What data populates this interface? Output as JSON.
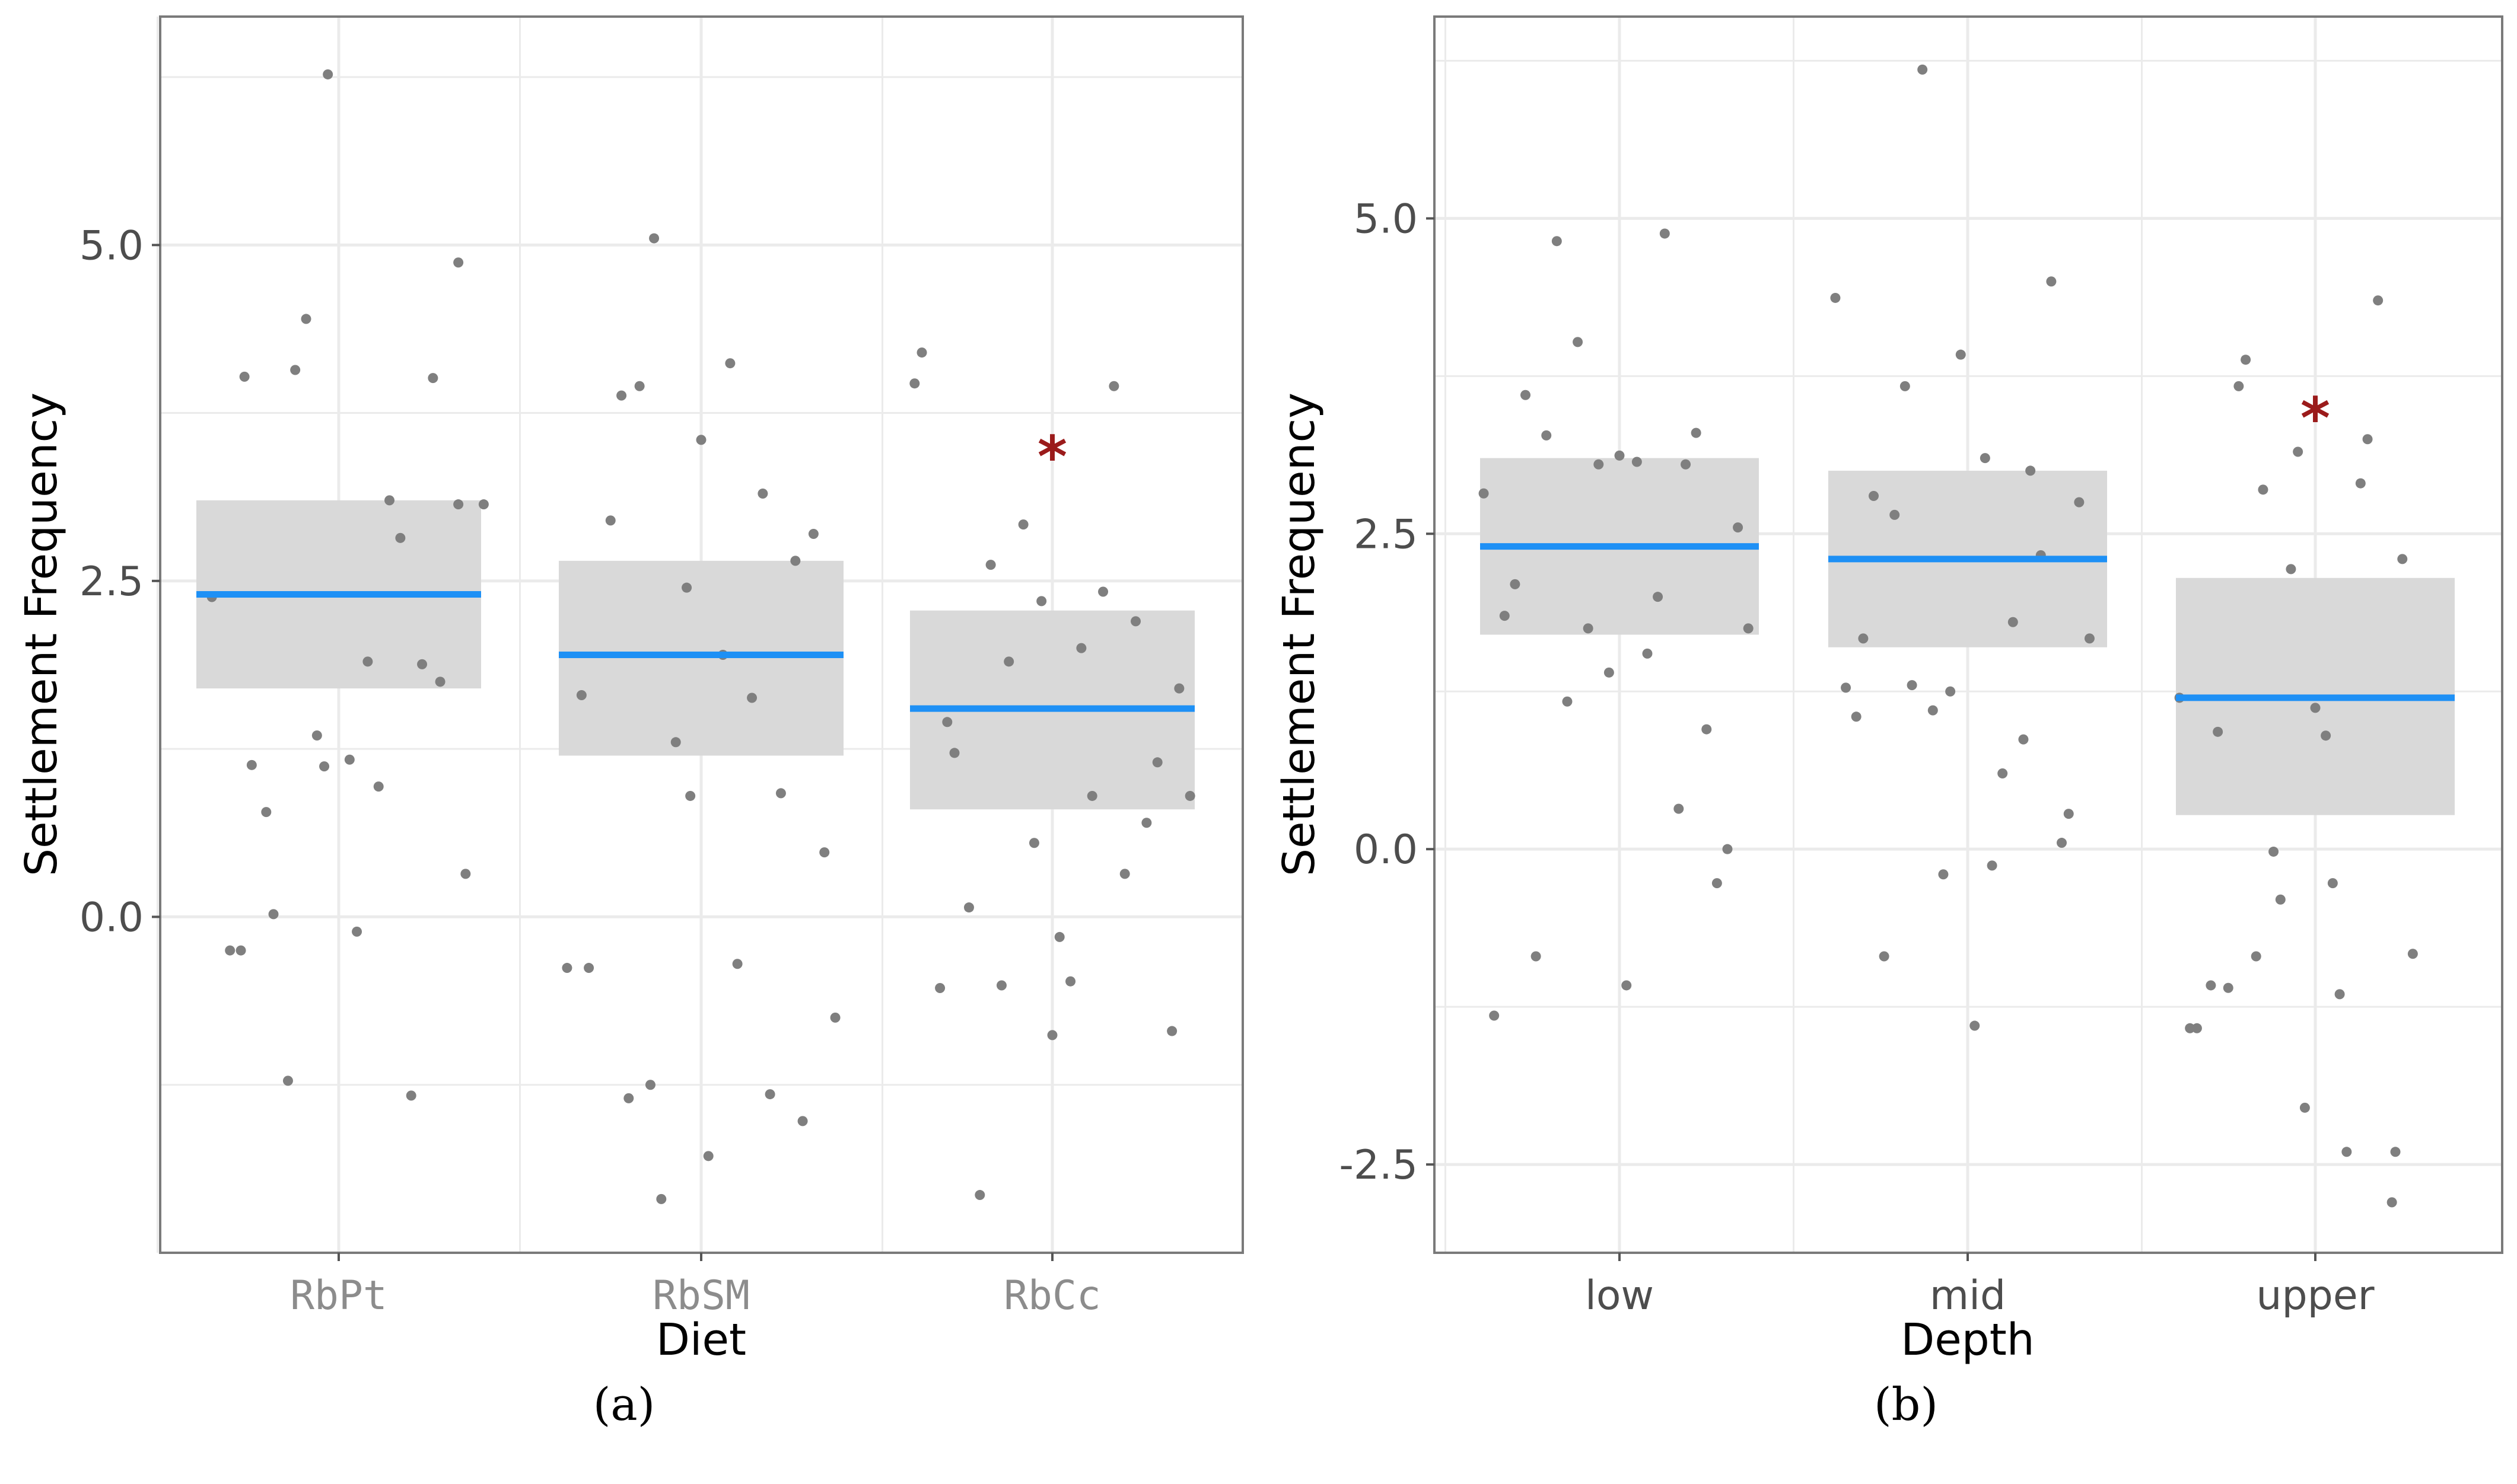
{
  "chart_data": [
    {
      "type": "scatter",
      "panel": "a",
      "title": "",
      "xlabel": "Diet",
      "ylabel": "Settlement Frequency",
      "categories": [
        "RbPt",
        "RbSM",
        "RbCc"
      ],
      "ylim": [
        -2.5,
        6.7
      ],
      "yticks": [
        0.0,
        2.5,
        5.0
      ],
      "ytick_labels": [
        "0.0",
        "2.5",
        "5.0"
      ],
      "grid": true,
      "groups": [
        {
          "category": "RbPt",
          "mean": 2.4,
          "ci_low": 1.7,
          "ci_high": 3.1,
          "points": [
            [
              -0.35,
              2.38
            ],
            [
              -0.3,
              -0.25
            ],
            [
              -0.27,
              -0.25
            ],
            [
              -0.26,
              4.02
            ],
            [
              -0.24,
              1.13
            ],
            [
              -0.2,
              0.78
            ],
            [
              -0.18,
              0.02
            ],
            [
              -0.14,
              -1.22
            ],
            [
              -0.12,
              4.07
            ],
            [
              -0.09,
              4.45
            ],
            [
              -0.06,
              1.35
            ],
            [
              -0.04,
              1.12
            ],
            [
              -0.03,
              6.27
            ],
            [
              0.03,
              1.17
            ],
            [
              0.05,
              -0.11
            ],
            [
              0.08,
              1.9
            ],
            [
              0.11,
              0.97
            ],
            [
              0.14,
              3.1
            ],
            [
              0.17,
              2.82
            ],
            [
              0.2,
              -1.33
            ],
            [
              0.23,
              1.88
            ],
            [
              0.26,
              4.01
            ],
            [
              0.28,
              1.75
            ],
            [
              0.33,
              4.87
            ],
            [
              0.35,
              0.32
            ],
            [
              0.4,
              3.07
            ],
            [
              0.33,
              3.07
            ]
          ]
        },
        {
          "category": "RbSM",
          "mean": 1.95,
          "ci_low": 1.2,
          "ci_high": 2.65,
          "points": [
            [
              -0.37,
              -0.38
            ],
            [
              -0.31,
              -0.38
            ],
            [
              -0.33,
              1.65
            ],
            [
              -0.25,
              2.95
            ],
            [
              -0.22,
              3.88
            ],
            [
              -0.2,
              -1.35
            ],
            [
              -0.17,
              3.95
            ],
            [
              -0.14,
              -1.25
            ],
            [
              -0.13,
              5.05
            ],
            [
              -0.11,
              -2.1
            ],
            [
              -0.07,
              1.3
            ],
            [
              -0.04,
              2.45
            ],
            [
              -0.03,
              0.9
            ],
            [
              0.0,
              3.55
            ],
            [
              0.02,
              -1.78
            ],
            [
              0.06,
              1.95
            ],
            [
              0.08,
              4.12
            ],
            [
              0.1,
              -0.35
            ],
            [
              0.14,
              1.63
            ],
            [
              0.17,
              3.15
            ],
            [
              0.19,
              -1.32
            ],
            [
              0.22,
              0.92
            ],
            [
              0.26,
              2.65
            ],
            [
              0.28,
              -1.52
            ],
            [
              0.31,
              2.85
            ],
            [
              0.34,
              0.48
            ],
            [
              0.37,
              -0.75
            ]
          ]
        },
        {
          "category": "RbCc",
          "mean": 1.55,
          "ci_low": 0.8,
          "ci_high": 2.28,
          "points": [
            [
              -0.38,
              3.97
            ],
            [
              -0.36,
              4.2
            ],
            [
              -0.31,
              -0.53
            ],
            [
              -0.29,
              1.45
            ],
            [
              -0.27,
              1.22
            ],
            [
              -0.23,
              0.07
            ],
            [
              -0.2,
              -2.07
            ],
            [
              -0.17,
              2.62
            ],
            [
              -0.14,
              -0.51
            ],
            [
              -0.12,
              1.9
            ],
            [
              -0.08,
              2.92
            ],
            [
              -0.05,
              0.55
            ],
            [
              -0.03,
              2.35
            ],
            [
              0.0,
              -0.88
            ],
            [
              0.02,
              -0.15
            ],
            [
              0.05,
              -0.48
            ],
            [
              0.08,
              2.0
            ],
            [
              0.11,
              0.9
            ],
            [
              0.14,
              2.42
            ],
            [
              0.17,
              3.95
            ],
            [
              0.2,
              0.32
            ],
            [
              0.23,
              2.2
            ],
            [
              0.26,
              0.7
            ],
            [
              0.29,
              1.15
            ],
            [
              0.33,
              -0.85
            ],
            [
              0.35,
              1.7
            ],
            [
              0.38,
              0.9
            ]
          ]
        }
      ],
      "annotation": {
        "text": "*",
        "category": "RbCc",
        "y": 3.55
      }
    },
    {
      "type": "scatter",
      "panel": "b",
      "title": "",
      "xlabel": "Depth",
      "ylabel": "Settlement Frequency",
      "categories": [
        "low",
        "mid",
        "upper"
      ],
      "ylim": [
        -3.2,
        6.6
      ],
      "yticks": [
        -2.5,
        0.0,
        2.5,
        5.0
      ],
      "ytick_labels": [
        "-2.5",
        "0.0",
        "2.5",
        "5.0"
      ],
      "grid": true,
      "groups": [
        {
          "category": "low",
          "mean": 2.4,
          "ci_low": 1.7,
          "ci_high": 3.1,
          "points": [
            [
              -0.39,
              2.82
            ],
            [
              -0.36,
              -1.32
            ],
            [
              -0.33,
              1.85
            ],
            [
              -0.3,
              2.1
            ],
            [
              -0.27,
              3.6
            ],
            [
              -0.24,
              -0.85
            ],
            [
              -0.21,
              3.28
            ],
            [
              -0.18,
              4.82
            ],
            [
              -0.15,
              1.17
            ],
            [
              -0.12,
              4.02
            ],
            [
              -0.09,
              1.75
            ],
            [
              -0.06,
              3.05
            ],
            [
              -0.03,
              1.4
            ],
            [
              0.0,
              3.12
            ],
            [
              0.02,
              -1.08
            ],
            [
              0.05,
              3.07
            ],
            [
              0.08,
              1.55
            ],
            [
              0.11,
              2.0
            ],
            [
              0.13,
              4.88
            ],
            [
              0.17,
              0.32
            ],
            [
              0.19,
              3.05
            ],
            [
              0.22,
              3.3
            ],
            [
              0.25,
              0.95
            ],
            [
              0.28,
              -0.27
            ],
            [
              0.31,
              0.0
            ],
            [
              0.34,
              2.55
            ],
            [
              0.37,
              1.75
            ]
          ]
        },
        {
          "category": "mid",
          "mean": 2.3,
          "ci_low": 1.6,
          "ci_high": 3.0,
          "points": [
            [
              -0.38,
              4.37
            ],
            [
              -0.35,
              1.28
            ],
            [
              -0.32,
              1.05
            ],
            [
              -0.3,
              1.67
            ],
            [
              -0.27,
              2.8
            ],
            [
              -0.24,
              -0.85
            ],
            [
              -0.21,
              2.65
            ],
            [
              -0.18,
              3.67
            ],
            [
              -0.16,
              1.3
            ],
            [
              -0.13,
              6.18
            ],
            [
              -0.1,
              1.1
            ],
            [
              -0.07,
              -0.2
            ],
            [
              -0.05,
              1.25
            ],
            [
              -0.02,
              3.92
            ],
            [
              0.02,
              -1.4
            ],
            [
              0.05,
              3.1
            ],
            [
              0.07,
              -0.13
            ],
            [
              0.1,
              0.6
            ],
            [
              0.13,
              1.8
            ],
            [
              0.16,
              0.87
            ],
            [
              0.18,
              3.0
            ],
            [
              0.21,
              2.33
            ],
            [
              0.24,
              4.5
            ],
            [
              0.27,
              0.05
            ],
            [
              0.29,
              0.28
            ],
            [
              0.32,
              2.75
            ],
            [
              0.35,
              1.67
            ]
          ]
        },
        {
          "category": "upper",
          "mean": 1.2,
          "ci_low": 0.27,
          "ci_high": 2.15,
          "points": [
            [
              -0.39,
              1.2
            ],
            [
              -0.36,
              -1.42
            ],
            [
              -0.34,
              -1.42
            ],
            [
              -0.3,
              -1.08
            ],
            [
              -0.28,
              0.93
            ],
            [
              -0.25,
              -1.1
            ],
            [
              -0.22,
              3.67
            ],
            [
              -0.2,
              3.88
            ],
            [
              -0.17,
              -0.85
            ],
            [
              -0.15,
              2.85
            ],
            [
              -0.12,
              -0.02
            ],
            [
              -0.1,
              -0.4
            ],
            [
              -0.07,
              2.22
            ],
            [
              -0.05,
              3.15
            ],
            [
              -0.03,
              -2.05
            ],
            [
              0.0,
              1.12
            ],
            [
              0.03,
              0.9
            ],
            [
              0.05,
              -0.27
            ],
            [
              0.07,
              -1.15
            ],
            [
              0.09,
              -2.4
            ],
            [
              0.13,
              2.9
            ],
            [
              0.15,
              3.25
            ],
            [
              0.18,
              4.35
            ],
            [
              0.23,
              -2.4
            ],
            [
              0.25,
              2.3
            ],
            [
              0.28,
              -0.83
            ],
            [
              0.22,
              -2.8
            ]
          ]
        }
      ],
      "annotation": {
        "text": "*",
        "category": "upper",
        "y": 3.55
      }
    }
  ],
  "panel_tags": [
    "(a)",
    "(b)"
  ],
  "colors": {
    "mean_line": "#1e90f5",
    "ci_band": "#d9d9d9",
    "points": "#7f7f7f",
    "annotation": "#9b1b1b",
    "grid": "#ebebeb",
    "panel_border": "#7a7a7a"
  }
}
